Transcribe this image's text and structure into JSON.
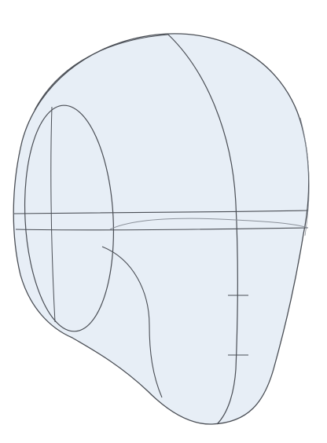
{
  "drawing": {
    "subject": "head-construction-sketch",
    "colors": {
      "background": "#ffffff",
      "fill": "#e7eef6",
      "stroke": "#4a4e55",
      "stroke_light": "#8a9099"
    }
  }
}
